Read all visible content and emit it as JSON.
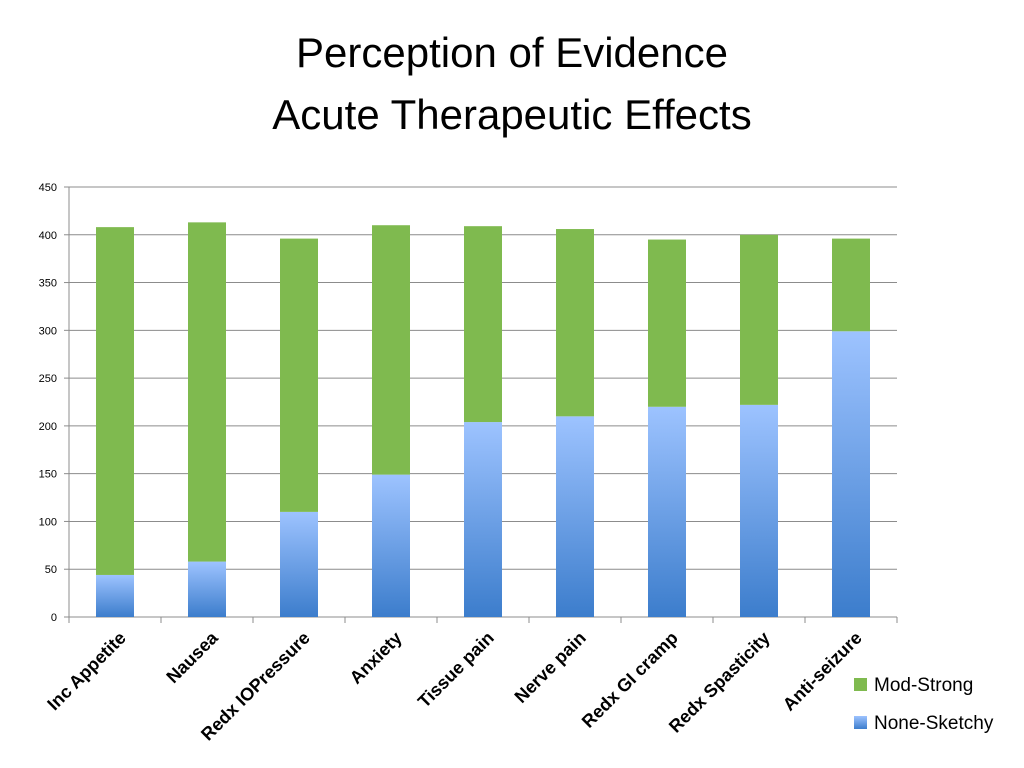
{
  "title": {
    "line1": "Perception of Evidence",
    "line2": "Acute Therapeutic Effects"
  },
  "colors": {
    "mod_strong": "#7FBA4F",
    "none_sketchy_top": "#9DC3FF",
    "none_sketchy_bottom": "#3C7DCC",
    "grid": "#8C8C8C"
  },
  "chart_data": {
    "type": "bar",
    "stacked": true,
    "categories": [
      "Inc Appetite",
      "Nausea",
      "Redx IOPressure",
      "Anxiety",
      "Tissue pain",
      "Nerve pain",
      "Redx GI cramp",
      "Redx Spasticity",
      "Anti-seizure"
    ],
    "series": [
      {
        "name": "None-Sketchy",
        "values": [
          44,
          58,
          110,
          149,
          204,
          210,
          220,
          222,
          299
        ]
      },
      {
        "name": "Mod-Strong",
        "values": [
          364,
          355,
          286,
          261,
          205,
          196,
          175,
          178,
          97
        ]
      }
    ],
    "ylim": [
      0,
      450
    ],
    "yticks": [
      0,
      50,
      100,
      150,
      200,
      250,
      300,
      350,
      400,
      450
    ],
    "grid": true,
    "legend_position": "bottom-right",
    "xlabel": "",
    "ylabel": ""
  }
}
